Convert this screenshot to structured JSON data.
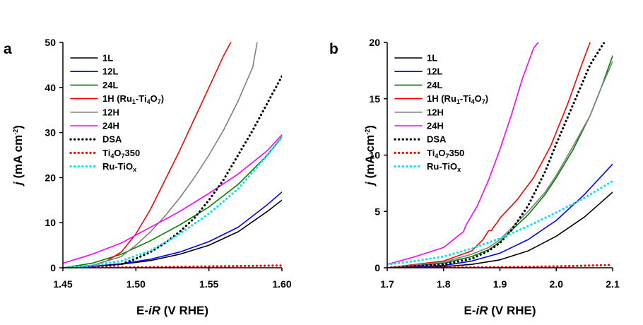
{
  "chart_data": [
    {
      "type": "line",
      "panel_label": "a",
      "xlabel_prefix": "E-",
      "xlabel_italic": "iR",
      "xlabel_suffix": " (V RHE)",
      "ylabel_italic": "j",
      "ylabel_main": " (mA cm",
      "ylabel_sup": "-2",
      "ylabel_end": ")",
      "xlim": [
        1.45,
        1.6
      ],
      "ylim": [
        0,
        50
      ],
      "xticks": [
        "1.45",
        "1.50",
        "1.55",
        "1.60"
      ],
      "xtick_values": [
        1.45,
        1.5,
        1.55,
        1.6
      ],
      "yticks": [
        "0",
        "10",
        "20",
        "30",
        "40",
        "50"
      ],
      "ytick_values": [
        0,
        10,
        20,
        30,
        40,
        50
      ],
      "legend_position": "top-left",
      "series": [
        {
          "name": "1L",
          "color": "#000000",
          "style": "solid",
          "x": [
            1.45,
            1.47,
            1.49,
            1.51,
            1.53,
            1.55,
            1.57,
            1.59,
            1.6
          ],
          "y": [
            0,
            0.3,
            0.8,
            1.6,
            3.0,
            5.0,
            8.0,
            12.5,
            15.0
          ]
        },
        {
          "name": "12L",
          "color": "#0000ff",
          "style": "solid",
          "x": [
            1.45,
            1.47,
            1.49,
            1.51,
            1.53,
            1.55,
            1.57,
            1.59,
            1.6
          ],
          "y": [
            0,
            0.3,
            0.9,
            1.9,
            3.5,
            5.8,
            9.0,
            14.0,
            16.8
          ]
        },
        {
          "name": "24L",
          "color": "#008000",
          "style": "solid",
          "x": [
            1.45,
            1.47,
            1.49,
            1.51,
            1.53,
            1.55,
            1.57,
            1.59,
            1.6
          ],
          "y": [
            0,
            1.0,
            3.0,
            6.0,
            9.5,
            13.5,
            18.5,
            25.0,
            29.0
          ]
        },
        {
          "name": "1H (Ru",
          "name_sub": "1",
          "name_mid": "-Ti",
          "name_sub2": "4",
          "name_mid2": "O",
          "name_sub3": "7",
          "name_end": ")",
          "color": "#ff0000",
          "style": "solid",
          "x": [
            1.45,
            1.47,
            1.48,
            1.49,
            1.5,
            1.51,
            1.52,
            1.53,
            1.54,
            1.55,
            1.56,
            1.565
          ],
          "y": [
            0,
            0.5,
            1.5,
            3.5,
            7.5,
            13.0,
            19.5,
            26.0,
            33.0,
            40.0,
            47.0,
            50.0
          ]
        },
        {
          "name": "12H",
          "color": "#808080",
          "style": "solid",
          "x": [
            1.45,
            1.47,
            1.49,
            1.5,
            1.51,
            1.52,
            1.53,
            1.54,
            1.55,
            1.56,
            1.57,
            1.58,
            1.583
          ],
          "y": [
            0,
            0.5,
            2.5,
            5.0,
            8.0,
            11.5,
            15.5,
            20.0,
            25.0,
            30.5,
            37.0,
            44.5,
            50.0
          ]
        },
        {
          "name": "24H",
          "color": "#ff00ff",
          "style": "solid",
          "x": [
            1.45,
            1.47,
            1.49,
            1.51,
            1.53,
            1.55,
            1.57,
            1.59,
            1.6
          ],
          "y": [
            1.0,
            3.0,
            5.5,
            9.0,
            12.5,
            16.5,
            20.8,
            26.0,
            29.5
          ]
        },
        {
          "name": "DSA",
          "color": "#000000",
          "style": "dotted",
          "x": [
            1.45,
            1.47,
            1.49,
            1.5,
            1.51,
            1.52,
            1.53,
            1.54,
            1.55,
            1.56,
            1.57,
            1.58,
            1.59,
            1.6
          ],
          "y": [
            0,
            0.2,
            0.8,
            2.0,
            3.5,
            5.5,
            8.0,
            11.0,
            15.0,
            19.5,
            25.0,
            30.5,
            36.5,
            42.5
          ]
        },
        {
          "name": "Ti",
          "name_sub": "4",
          "name_mid": "O",
          "name_sub2": "7",
          "name_end": "350",
          "color": "#ff0000",
          "style": "dotted",
          "x": [
            1.45,
            1.5,
            1.55,
            1.6
          ],
          "y": [
            0,
            0.1,
            0.3,
            0.5
          ]
        },
        {
          "name": "Ru-TiO",
          "name_sub": "x",
          "color": "#00e5ee",
          "style": "dotted",
          "x": [
            1.45,
            1.47,
            1.49,
            1.51,
            1.53,
            1.55,
            1.57,
            1.59,
            1.6
          ],
          "y": [
            0,
            0.5,
            1.5,
            3.8,
            7.5,
            12.0,
            17.5,
            25.0,
            29.0
          ]
        }
      ]
    },
    {
      "type": "line",
      "panel_label": "b",
      "xlabel_prefix": "E-",
      "xlabel_italic": "iR",
      "xlabel_suffix": " (V RHE)",
      "ylabel_italic": "j",
      "ylabel_main": " (mA cm",
      "ylabel_sup": "-2",
      "ylabel_end": ")",
      "xlim": [
        1.7,
        2.1
      ],
      "ylim": [
        0,
        20
      ],
      "xticks": [
        "1.7",
        "1.8",
        "1.9",
        "2.0",
        "2.1"
      ],
      "xtick_values": [
        1.7,
        1.8,
        1.9,
        2.0,
        2.1
      ],
      "yticks": [
        "0",
        "5",
        "10",
        "15",
        "20"
      ],
      "ytick_values": [
        0,
        5,
        10,
        15,
        20
      ],
      "legend_position": "top-left",
      "series": [
        {
          "name": "1L",
          "color": "#000000",
          "style": "solid",
          "x": [
            1.7,
            1.8,
            1.85,
            1.9,
            1.95,
            2.0,
            2.05,
            2.1
          ],
          "y": [
            0,
            0.1,
            0.3,
            0.7,
            1.5,
            2.8,
            4.5,
            6.7
          ]
        },
        {
          "name": "12L",
          "color": "#0000ff",
          "style": "solid",
          "x": [
            1.7,
            1.8,
            1.85,
            1.9,
            1.95,
            2.0,
            2.05,
            2.1
          ],
          "y": [
            0,
            0.2,
            0.6,
            1.3,
            2.5,
            4.2,
            6.5,
            9.2
          ]
        },
        {
          "name": "24L",
          "color": "#008000",
          "style": "solid",
          "x": [
            1.7,
            1.8,
            1.85,
            1.88,
            1.9,
            1.92,
            1.95,
            1.98,
            2.0,
            2.03,
            2.06,
            2.08,
            2.1
          ],
          "y": [
            0,
            0.4,
            1.0,
            1.6,
            2.3,
            3.3,
            4.7,
            6.5,
            8.0,
            10.5,
            13.5,
            16.0,
            18.8
          ]
        },
        {
          "name": "1H (Ru",
          "name_sub": "1",
          "name_mid": "-Ti",
          "name_sub2": "4",
          "name_mid2": "O",
          "name_sub3": "7",
          "name_end": ")",
          "color": "#ff0000",
          "style": "solid",
          "x": [
            1.7,
            1.8,
            1.85,
            1.87,
            1.88,
            1.885,
            1.89,
            1.895,
            1.9,
            1.93,
            1.96,
            1.99,
            2.02,
            2.045,
            2.06
          ],
          "y": [
            0,
            0.6,
            1.5,
            2.5,
            3.3,
            3.3,
            3.7,
            4.0,
            4.4,
            6.0,
            8.0,
            10.8,
            14.5,
            18.0,
            20.0
          ]
        },
        {
          "name": "12H",
          "color": "#808080",
          "style": "solid",
          "x": [
            1.7,
            1.8,
            1.85,
            1.88,
            1.9,
            1.92,
            1.93,
            1.95,
            1.98,
            2.0,
            2.03,
            2.06,
            2.08,
            2.1
          ],
          "y": [
            0,
            0.5,
            1.2,
            1.8,
            2.5,
            3.5,
            4.0,
            5.0,
            6.7,
            8.2,
            10.8,
            13.5,
            16.0,
            18.3
          ]
        },
        {
          "name": "24H",
          "color": "#ff00ff",
          "style": "solid",
          "x": [
            1.7,
            1.75,
            1.8,
            1.82,
            1.83,
            1.835,
            1.84,
            1.86,
            1.88,
            1.9,
            1.92,
            1.94,
            1.96,
            1.968
          ],
          "y": [
            0.3,
            1.0,
            1.8,
            2.6,
            3.0,
            3.2,
            3.8,
            5.5,
            7.8,
            10.5,
            13.5,
            16.8,
            19.5,
            20.0
          ]
        },
        {
          "name": "DSA",
          "color": "#000000",
          "style": "dotted",
          "x": [
            1.7,
            1.8,
            1.85,
            1.88,
            1.9,
            1.92,
            1.95,
            1.98,
            2.0,
            2.03,
            2.06,
            2.085
          ],
          "y": [
            0,
            0.3,
            0.8,
            1.5,
            2.2,
            3.3,
            5.5,
            8.5,
            11.0,
            14.5,
            18.0,
            20.0
          ]
        },
        {
          "name": "Ti",
          "name_sub": "4",
          "name_mid": "O",
          "name_sub2": "7",
          "name_end": "350",
          "color": "#ff0000",
          "style": "dotted",
          "x": [
            1.7,
            1.8,
            1.9,
            2.0,
            2.1
          ],
          "y": [
            0,
            0.02,
            0.05,
            0.12,
            0.25
          ]
        },
        {
          "name": "Ru-TiO",
          "name_sub": "x",
          "color": "#00e5ee",
          "style": "dotted",
          "x": [
            1.7,
            1.75,
            1.8,
            1.85,
            1.9,
            1.95,
            2.0,
            2.05,
            2.1
          ],
          "y": [
            0.3,
            0.6,
            1.0,
            1.7,
            2.6,
            3.7,
            4.9,
            6.2,
            7.7
          ]
        }
      ]
    }
  ]
}
